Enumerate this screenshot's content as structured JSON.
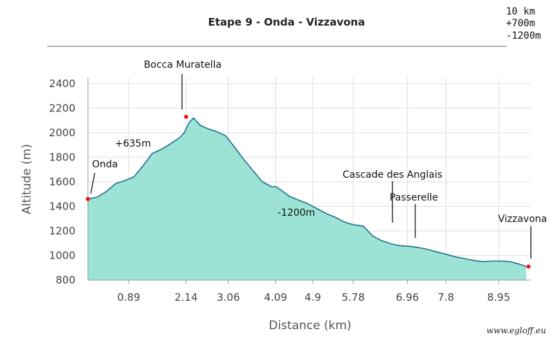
{
  "chart_data": {
    "type": "area",
    "title": "Etape 9 - Onda - Vizzavona",
    "stats": [
      "10 km",
      "+700m",
      "-1200m"
    ],
    "xlabel": "Distance (km)",
    "ylabel": "Altitude (m)",
    "x_ticks": [
      "0.89",
      "2.14",
      "3.06",
      "4.09",
      "4.9",
      "5.78",
      "6.96",
      "7.8",
      "8.95"
    ],
    "y_ticks": [
      800,
      1000,
      1200,
      1400,
      1600,
      1800,
      2000,
      2200,
      2400
    ],
    "xlim": [
      0,
      9.65
    ],
    "ylim": [
      800,
      2450
    ],
    "grid": true,
    "fill_color": "#9ce3d5",
    "line_color": "#1f6f8f",
    "marker_color": "#e8181b",
    "series": [
      {
        "x": [
          0,
          0.2,
          0.4,
          0.6,
          0.8,
          1.0,
          1.2,
          1.4,
          1.6,
          1.8,
          2.0,
          2.1,
          2.2,
          2.3,
          2.45,
          2.6,
          2.8,
          3.0,
          3.2,
          3.4,
          3.6,
          3.8,
          4.0,
          4.1,
          4.2,
          4.4,
          4.6,
          4.8,
          5.0,
          5.2,
          5.4,
          5.6,
          5.8,
          6.0,
          6.2,
          6.4,
          6.5,
          6.6,
          6.8,
          7.0,
          7.2,
          7.4,
          7.6,
          7.8,
          8.0,
          8.2,
          8.4,
          8.6,
          8.8,
          9.0,
          9.2,
          9.4,
          9.55
        ],
        "y": [
          1460,
          1475,
          1520,
          1585,
          1610,
          1640,
          1730,
          1830,
          1865,
          1910,
          1960,
          2000,
          2080,
          2120,
          2060,
          2035,
          2010,
          1975,
          1880,
          1780,
          1690,
          1600,
          1560,
          1560,
          1535,
          1480,
          1450,
          1420,
          1380,
          1340,
          1310,
          1270,
          1250,
          1240,
          1160,
          1120,
          1110,
          1095,
          1080,
          1075,
          1065,
          1050,
          1030,
          1010,
          990,
          975,
          960,
          950,
          955,
          955,
          950,
          930,
          910
        ]
      }
    ],
    "annotations": [
      {
        "label": "Onda",
        "x": 0.0,
        "y": 1460,
        "marker": true
      },
      {
        "label": "Bocca Muratella",
        "x": 2.14,
        "y": 2130,
        "marker": true
      },
      {
        "label": "+635m",
        "x": 0.9,
        "y": 1895,
        "marker": false
      },
      {
        "label": "-1200m",
        "x": 4.4,
        "y": 1355,
        "marker": false
      },
      {
        "label": "Cascade des Anglais",
        "x": 6.35,
        "y": 1250,
        "marker": false
      },
      {
        "label": "Passerelle",
        "x": 6.96,
        "y": 1120,
        "marker": false
      },
      {
        "label": "Vizzavona",
        "x": 9.6,
        "y": 910,
        "marker": true
      }
    ]
  },
  "watermark": "www.egloff.eu"
}
